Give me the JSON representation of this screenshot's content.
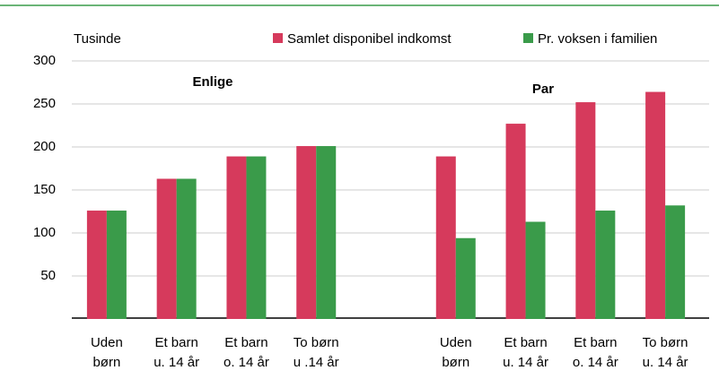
{
  "chart_data": {
    "type": "bar",
    "y_label": "Tusinde",
    "categories": [
      "Uden\nbørn",
      "Et barn\nu. 14 år",
      "Et barn\no. 14 år",
      "To børn\nu .14 år",
      null,
      "Uden\nbørn",
      "Et barn\nu. 14 år",
      "Et barn\no. 14 år",
      "To børn\nu. 14 år"
    ],
    "series": [
      {
        "name": "Samlet disponibel indkomst",
        "color": "#d63a5c",
        "values": [
          126,
          163,
          189,
          201,
          null,
          189,
          227,
          252,
          264
        ]
      },
      {
        "name": "Pr. voksen i familien",
        "color": "#3a9b4a",
        "values": [
          126,
          163,
          189,
          201,
          null,
          94,
          113,
          126,
          132
        ]
      }
    ],
    "annotations": [
      "Enlige",
      "Par"
    ],
    "ylim": [
      0,
      300
    ],
    "yticks": [
      50,
      100,
      150,
      200,
      250,
      300
    ],
    "grid": true
  }
}
